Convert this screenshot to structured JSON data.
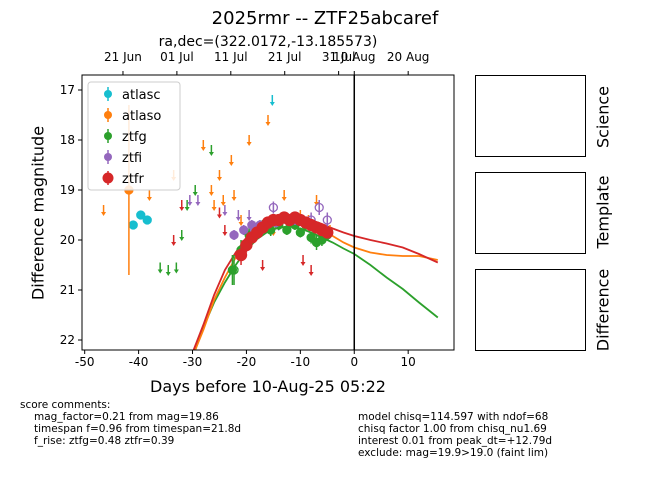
{
  "title": "2025rmr -- ZTF25abcaref",
  "subtitle": "ra,dec=(322.0172,-13.185573)",
  "panels": {
    "science_label": "Science",
    "template_label": "Template",
    "difference_label": "Difference"
  },
  "notes": {
    "left_header": "score comments:",
    "left_lines": [
      "mag_factor=0.21 from mag=19.86",
      "timespan f=0.96 from timespan=21.8d",
      "f_rise: ztfg=0.48 ztfr=0.39"
    ],
    "right_lines": [
      "model chisq=114.597 with ndof=68",
      "chisq factor 1.00 from chisq_nu1.69",
      "interest 0.01 from peak_dt=+12.79d",
      "exclude: mag=19.9>19.0 (faint lim)"
    ]
  },
  "chart_data": {
    "type": "scatter",
    "xlabel": "Days before 10-Aug-25 05:22",
    "ylabel": "Difference magnitude",
    "xlim": [
      -50.5,
      18.5
    ],
    "ylim": [
      22.2,
      16.7
    ],
    "x_ticks": [
      -50,
      -40,
      -30,
      -20,
      -10,
      0,
      10
    ],
    "y_ticks": [
      17,
      18,
      19,
      20,
      21,
      22
    ],
    "top_axis_labels": [
      {
        "x": -42.9,
        "label": "21 Jun"
      },
      {
        "x": -32.9,
        "label": "01 Jul"
      },
      {
        "x": -22.9,
        "label": "11 Jul"
      },
      {
        "x": -12.9,
        "label": "21 Jul"
      },
      {
        "x": -2.9,
        "label": "31 Jul"
      },
      {
        "x": 0,
        "label": "10 Aug"
      },
      {
        "x": 10,
        "label": "20 Aug"
      }
    ],
    "vline_x": 0,
    "legend_position": "upper left",
    "grid": false,
    "series": [
      {
        "name": "atlasc",
        "color": "#17becf",
        "points": [
          [
            -41.0,
            19.7,
            0.08
          ],
          [
            -39.6,
            19.5,
            0.08
          ],
          [
            -38.4,
            19.6,
            0.08
          ]
        ],
        "upper_limits": [
          [
            -15.2,
            17.2
          ]
        ]
      },
      {
        "name": "atlaso",
        "color": "#ff7f0e",
        "points": [
          [
            -41.8,
            19.0,
            1.7
          ]
        ],
        "upper_limits": [
          [
            -46.5,
            19.4
          ],
          [
            -38.0,
            19.1
          ],
          [
            -33.5,
            18.7
          ],
          [
            -28.0,
            18.1
          ],
          [
            -26.5,
            19.0
          ],
          [
            -26.0,
            19.3
          ],
          [
            -25.0,
            18.7
          ],
          [
            -24.3,
            19.2
          ],
          [
            -22.8,
            18.4
          ],
          [
            -22.3,
            19.1
          ],
          [
            -21.0,
            19.6
          ],
          [
            -19.5,
            18.0
          ],
          [
            -16.0,
            17.6
          ],
          [
            -15.0,
            19.8
          ],
          [
            -13.0,
            19.1
          ],
          [
            -11.5,
            19.6
          ],
          [
            -10.0,
            19.5
          ],
          [
            -8.5,
            19.6
          ],
          [
            -7.0,
            19.2
          ],
          [
            -5.5,
            19.8
          ],
          [
            -4.5,
            19.8
          ]
        ]
      },
      {
        "name": "ztfg",
        "color": "#2ca02c",
        "points": [
          [
            -22.6,
            20.6,
            0.3
          ],
          [
            -21.0,
            20.2,
            0.2
          ],
          [
            -19.5,
            19.9,
            0.15
          ],
          [
            -18.5,
            19.75,
            0.12
          ],
          [
            -17.0,
            19.7,
            0.1
          ],
          [
            -15.5,
            19.8,
            0.12
          ],
          [
            -14.0,
            19.7,
            0.1
          ],
          [
            -12.5,
            19.8,
            0.1
          ],
          [
            -11.0,
            19.7,
            0.1
          ],
          [
            -10.0,
            19.85,
            0.1
          ],
          [
            -9.0,
            19.7,
            0.1
          ],
          [
            -8.0,
            19.95,
            0.12
          ],
          [
            -7.0,
            20.05,
            0.15
          ],
          [
            -6.0,
            20.0,
            0.12
          ],
          [
            -5.0,
            19.9,
            0.12
          ]
        ],
        "open_points": [
          [
            -22.3,
            20.6,
            0.3
          ]
        ],
        "upper_limits": [
          [
            -36.0,
            20.55
          ],
          [
            -34.5,
            20.6
          ],
          [
            -33.0,
            20.55
          ],
          [
            -32.0,
            19.9
          ],
          [
            -31.0,
            19.3
          ],
          [
            -29.5,
            19.0
          ],
          [
            -26.5,
            18.2
          ]
        ]
      },
      {
        "name": "ztfi",
        "color": "#9467bd",
        "points": [
          [
            -22.3,
            19.9,
            0.1
          ],
          [
            -20.5,
            19.8,
            0.1
          ],
          [
            -19.0,
            19.7,
            0.1
          ],
          [
            -17.5,
            19.7,
            0.1
          ],
          [
            -16.0,
            19.65,
            0.1
          ],
          [
            -14.5,
            19.65,
            0.1
          ],
          [
            -12.5,
            19.6,
            0.1
          ],
          [
            -11.0,
            19.6,
            0.1
          ]
        ],
        "open_points": [
          [
            -15.0,
            19.35,
            0.12
          ],
          [
            -8.0,
            19.6,
            0.15
          ],
          [
            -6.5,
            19.35,
            0.15
          ],
          [
            -5.0,
            19.6,
            0.15
          ],
          [
            -18.5,
            19.8,
            0.12
          ]
        ],
        "upper_limits": [
          [
            -30.5,
            19.2
          ],
          [
            -29.0,
            19.2
          ],
          [
            -24.0,
            19.4
          ],
          [
            -21.5,
            19.5
          ],
          [
            -19.5,
            19.5
          ],
          [
            -14.0,
            19.7
          ]
        ]
      },
      {
        "name": "ztfr",
        "color": "#d62728",
        "points": [
          [
            -21.0,
            20.3,
            0.2
          ],
          [
            -20.0,
            20.1,
            0.15
          ],
          [
            -19.0,
            19.95,
            0.12
          ],
          [
            -18.0,
            19.85,
            0.1
          ],
          [
            -17.0,
            19.75,
            0.1
          ],
          [
            -16.0,
            19.65,
            0.1
          ],
          [
            -15.0,
            19.6,
            0.1
          ],
          [
            -14.0,
            19.6,
            0.1
          ],
          [
            -13.0,
            19.55,
            0.1
          ],
          [
            -12.0,
            19.6,
            0.1
          ],
          [
            -11.0,
            19.55,
            0.1
          ],
          [
            -10.0,
            19.6,
            0.1
          ],
          [
            -9.0,
            19.65,
            0.1
          ],
          [
            -8.0,
            19.7,
            0.1
          ],
          [
            -7.0,
            19.75,
            0.1
          ],
          [
            -6.0,
            19.8,
            0.1
          ],
          [
            -5.0,
            19.85,
            0.1
          ]
        ],
        "upper_limits": [
          [
            -33.5,
            20.0
          ],
          [
            -32.0,
            19.3
          ],
          [
            -25.0,
            19.45
          ],
          [
            -24.0,
            19.8
          ],
          [
            -20.5,
            20.1
          ],
          [
            -17.0,
            20.5
          ],
          [
            -9.5,
            20.4
          ],
          [
            -8.0,
            20.6
          ]
        ]
      }
    ],
    "models": [
      {
        "color": "#2ca02c",
        "x": [
          -29.5,
          -28,
          -26,
          -24,
          -22,
          -20,
          -18,
          -16,
          -14,
          -12,
          -10,
          -8,
          -6,
          -4,
          -2,
          0,
          3,
          6,
          9,
          12,
          15.5
        ],
        "y": [
          22.2,
          21.75,
          21.25,
          20.85,
          20.5,
          20.2,
          19.98,
          19.83,
          19.75,
          19.73,
          19.77,
          19.85,
          19.95,
          20.05,
          20.17,
          20.28,
          20.5,
          20.75,
          20.98,
          21.25,
          21.55
        ]
      },
      {
        "color": "#ff7f0e",
        "x": [
          -29.5,
          -28,
          -26,
          -24,
          -22,
          -20,
          -18,
          -16,
          -14,
          -12,
          -10,
          -8,
          -6,
          -4,
          -2,
          0,
          3,
          6,
          9,
          12,
          15.5
        ],
        "y": [
          22.2,
          21.8,
          21.2,
          20.75,
          20.35,
          20.05,
          19.85,
          19.7,
          19.62,
          19.6,
          19.62,
          19.7,
          19.8,
          19.92,
          20.05,
          20.15,
          20.25,
          20.3,
          20.32,
          20.32,
          20.4
        ]
      },
      {
        "color": "#d62728",
        "x": [
          -29.8,
          -28,
          -26,
          -24,
          -22,
          -20,
          -18,
          -16,
          -14,
          -12,
          -10,
          -8,
          -6,
          -4,
          -2,
          0,
          3,
          6,
          9,
          12,
          15.5
        ],
        "y": [
          22.2,
          21.7,
          21.1,
          20.6,
          20.25,
          19.95,
          19.75,
          19.62,
          19.55,
          19.53,
          19.55,
          19.6,
          19.68,
          19.77,
          19.85,
          19.92,
          20.0,
          20.07,
          20.15,
          20.28,
          20.45
        ]
      }
    ]
  }
}
